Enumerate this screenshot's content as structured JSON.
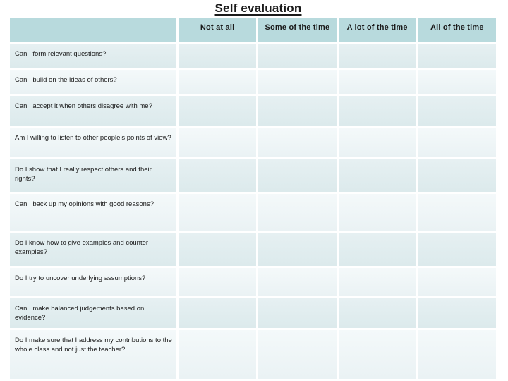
{
  "title": "Self evaluation",
  "table": {
    "columns": [
      "Not at all",
      "Some of the time",
      "A lot of the time",
      "All of the time"
    ],
    "rows": [
      {
        "question": "Can I form relevant questions?"
      },
      {
        "question": "Can I build on the ideas of others?"
      },
      {
        "question": "Can I accept it when others disagree with me?"
      },
      {
        "question": "Am I willing to listen to other people’s points of view?"
      },
      {
        "question": "Do I show that I really respect others and their rights?"
      },
      {
        "question": "Can I back up my opinions with good reasons?"
      },
      {
        "question": "Do I know how to give examples and counter examples?"
      },
      {
        "question": "Do I try to uncover underlying assumptions?"
      },
      {
        "question": "Can I make balanced judgements based on evidence?"
      },
      {
        "question": "Do I make sure that I address my contributions to the whole class and not just the teacher?"
      }
    ]
  },
  "theme": {
    "header_bg": "#b8dadd",
    "row_dark": "#e0edef",
    "row_light": "#f0f6f7",
    "divider": "#ffffff",
    "text": "#1b1b1b"
  }
}
